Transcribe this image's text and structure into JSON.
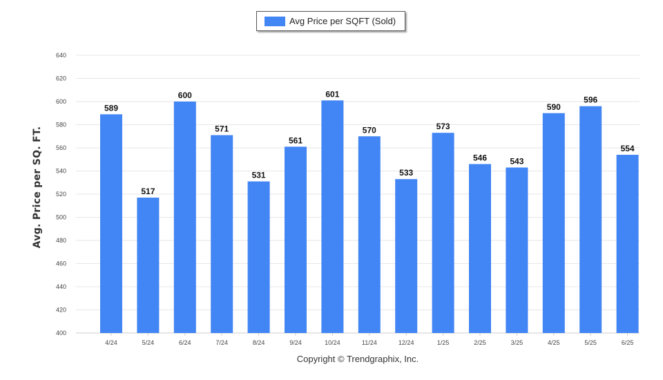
{
  "chart_data": {
    "type": "bar",
    "categories": [
      "4/24",
      "5/24",
      "6/24",
      "7/24",
      "8/24",
      "9/24",
      "10/24",
      "11/24",
      "12/24",
      "1/25",
      "2/25",
      "3/25",
      "4/25",
      "5/25",
      "6/25"
    ],
    "series": [
      {
        "name": "Avg Price per SQFT (Sold)",
        "values": [
          589,
          517,
          600,
          571,
          531,
          561,
          601,
          570,
          533,
          573,
          546,
          543,
          590,
          596,
          554
        ]
      }
    ],
    "xlabel": "Copyright © Trendgraphix, Inc.",
    "ylabel": "Avg. Price per SQ. FT.",
    "ylim": [
      400,
      640
    ],
    "yticks": [
      400,
      420,
      440,
      460,
      480,
      500,
      520,
      540,
      560,
      580,
      600,
      620,
      640
    ],
    "legend": "top-center",
    "grid": true,
    "colors": {
      "bar": "#4285f4",
      "grid": "#e6e6e6",
      "axis": "#cccccc"
    }
  }
}
